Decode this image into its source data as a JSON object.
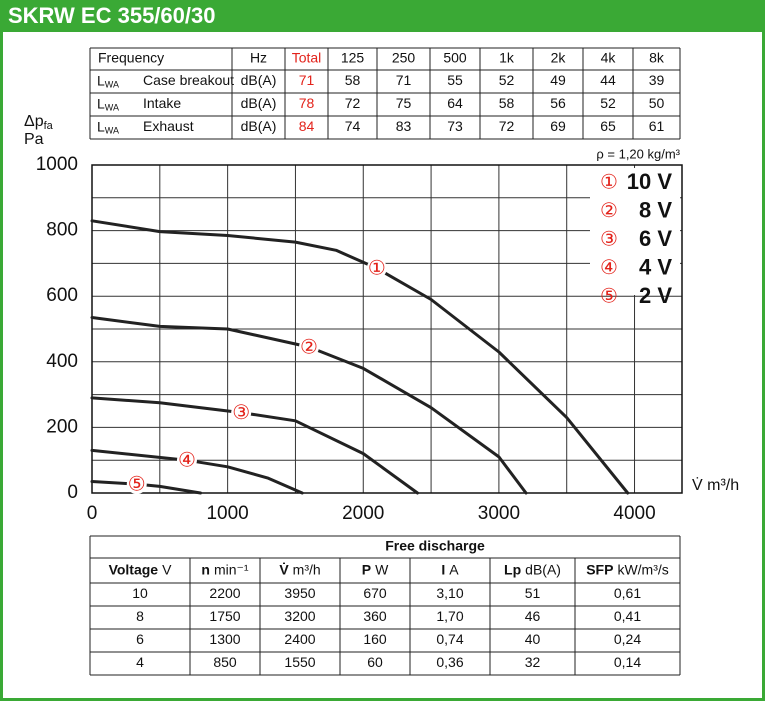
{
  "header": {
    "title": "SKRW EC 355/60/30"
  },
  "sound_table": {
    "headers": [
      "Frequency",
      "Hz",
      "Total",
      "125",
      "250",
      "500",
      "1k",
      "2k",
      "4k",
      "8k"
    ],
    "rows": [
      {
        "symbol": "L",
        "subscript": "WA",
        "name": "Case breakout",
        "unit": "dB(A)",
        "total": "71",
        "values": [
          "58",
          "71",
          "55",
          "52",
          "49",
          "44",
          "39"
        ]
      },
      {
        "symbol": "L",
        "subscript": "WA",
        "name": "Intake",
        "unit": "dB(A)",
        "total": "78",
        "values": [
          "72",
          "75",
          "64",
          "58",
          "56",
          "52",
          "50"
        ]
      },
      {
        "symbol": "L",
        "subscript": "WA",
        "name": "Exhaust",
        "unit": "dB(A)",
        "total": "84",
        "values": [
          "74",
          "83",
          "73",
          "72",
          "69",
          "65",
          "61"
        ]
      }
    ]
  },
  "chart_data": {
    "type": "line",
    "ylabel": "Δp",
    "ylabel_subscript": "fa",
    "yunit": "Pa",
    "xlabel": "V̇ m³/h",
    "note": "ρ = 1,20 kg/m³",
    "xlim": [
      0,
      4350
    ],
    "ylim": [
      0,
      1000
    ],
    "xticks": [
      0,
      1000,
      2000,
      3000,
      4000
    ],
    "yticks": [
      0,
      200,
      400,
      600,
      800,
      1000
    ],
    "grid": true,
    "legend": "top-right",
    "series": [
      {
        "name": "10 V",
        "label": "①",
        "color": "#222222",
        "x": [
          0,
          500,
          1000,
          1500,
          1800,
          2100,
          2500,
          3000,
          3500,
          3950
        ],
        "values": [
          830,
          797,
          785,
          765,
          740,
          685,
          590,
          430,
          230,
          0
        ]
      },
      {
        "name": "8 V",
        "label": "②",
        "color": "#222222",
        "x": [
          0,
          500,
          1000,
          1600,
          2000,
          2500,
          3000,
          3200
        ],
        "values": [
          535,
          508,
          500,
          445,
          380,
          260,
          110,
          0
        ]
      },
      {
        "name": "6 V",
        "label": "③",
        "color": "#222222",
        "x": [
          0,
          500,
          1100,
          1500,
          2000,
          2400
        ],
        "values": [
          290,
          275,
          245,
          220,
          120,
          0
        ]
      },
      {
        "name": "4 V",
        "label": "④",
        "color": "#222222",
        "x": [
          0,
          700,
          1000,
          1300,
          1550
        ],
        "values": [
          130,
          100,
          80,
          45,
          0
        ]
      },
      {
        "name": "2 V",
        "label": "⑤",
        "color": "#222222",
        "x": [
          0,
          330,
          500,
          800
        ],
        "values": [
          35,
          27,
          20,
          0
        ]
      }
    ]
  },
  "performance_table": {
    "group_header": "Free discharge",
    "headers": [
      {
        "symbol": "Voltage",
        "unit": "V"
      },
      {
        "symbol": "n",
        "unit": "min⁻¹"
      },
      {
        "symbol": "V̇",
        "unit": "m³/h"
      },
      {
        "symbol": "P",
        "unit": "W"
      },
      {
        "symbol": "I",
        "unit": "A"
      },
      {
        "symbol": "Lp",
        "unit": "dB(A)"
      },
      {
        "symbol": "SFP",
        "unit": "kW/m³/s"
      }
    ],
    "rows": [
      [
        "10",
        "2200",
        "3950",
        "670",
        "3,10",
        "51",
        "0,61"
      ],
      [
        "8",
        "1750",
        "3200",
        "360",
        "1,70",
        "46",
        "0,41"
      ],
      [
        "6",
        "1300",
        "2400",
        "160",
        "0,74",
        "40",
        "0,24"
      ],
      [
        "4",
        "850",
        "1550",
        "60",
        "0,36",
        "32",
        "0,14"
      ]
    ]
  }
}
